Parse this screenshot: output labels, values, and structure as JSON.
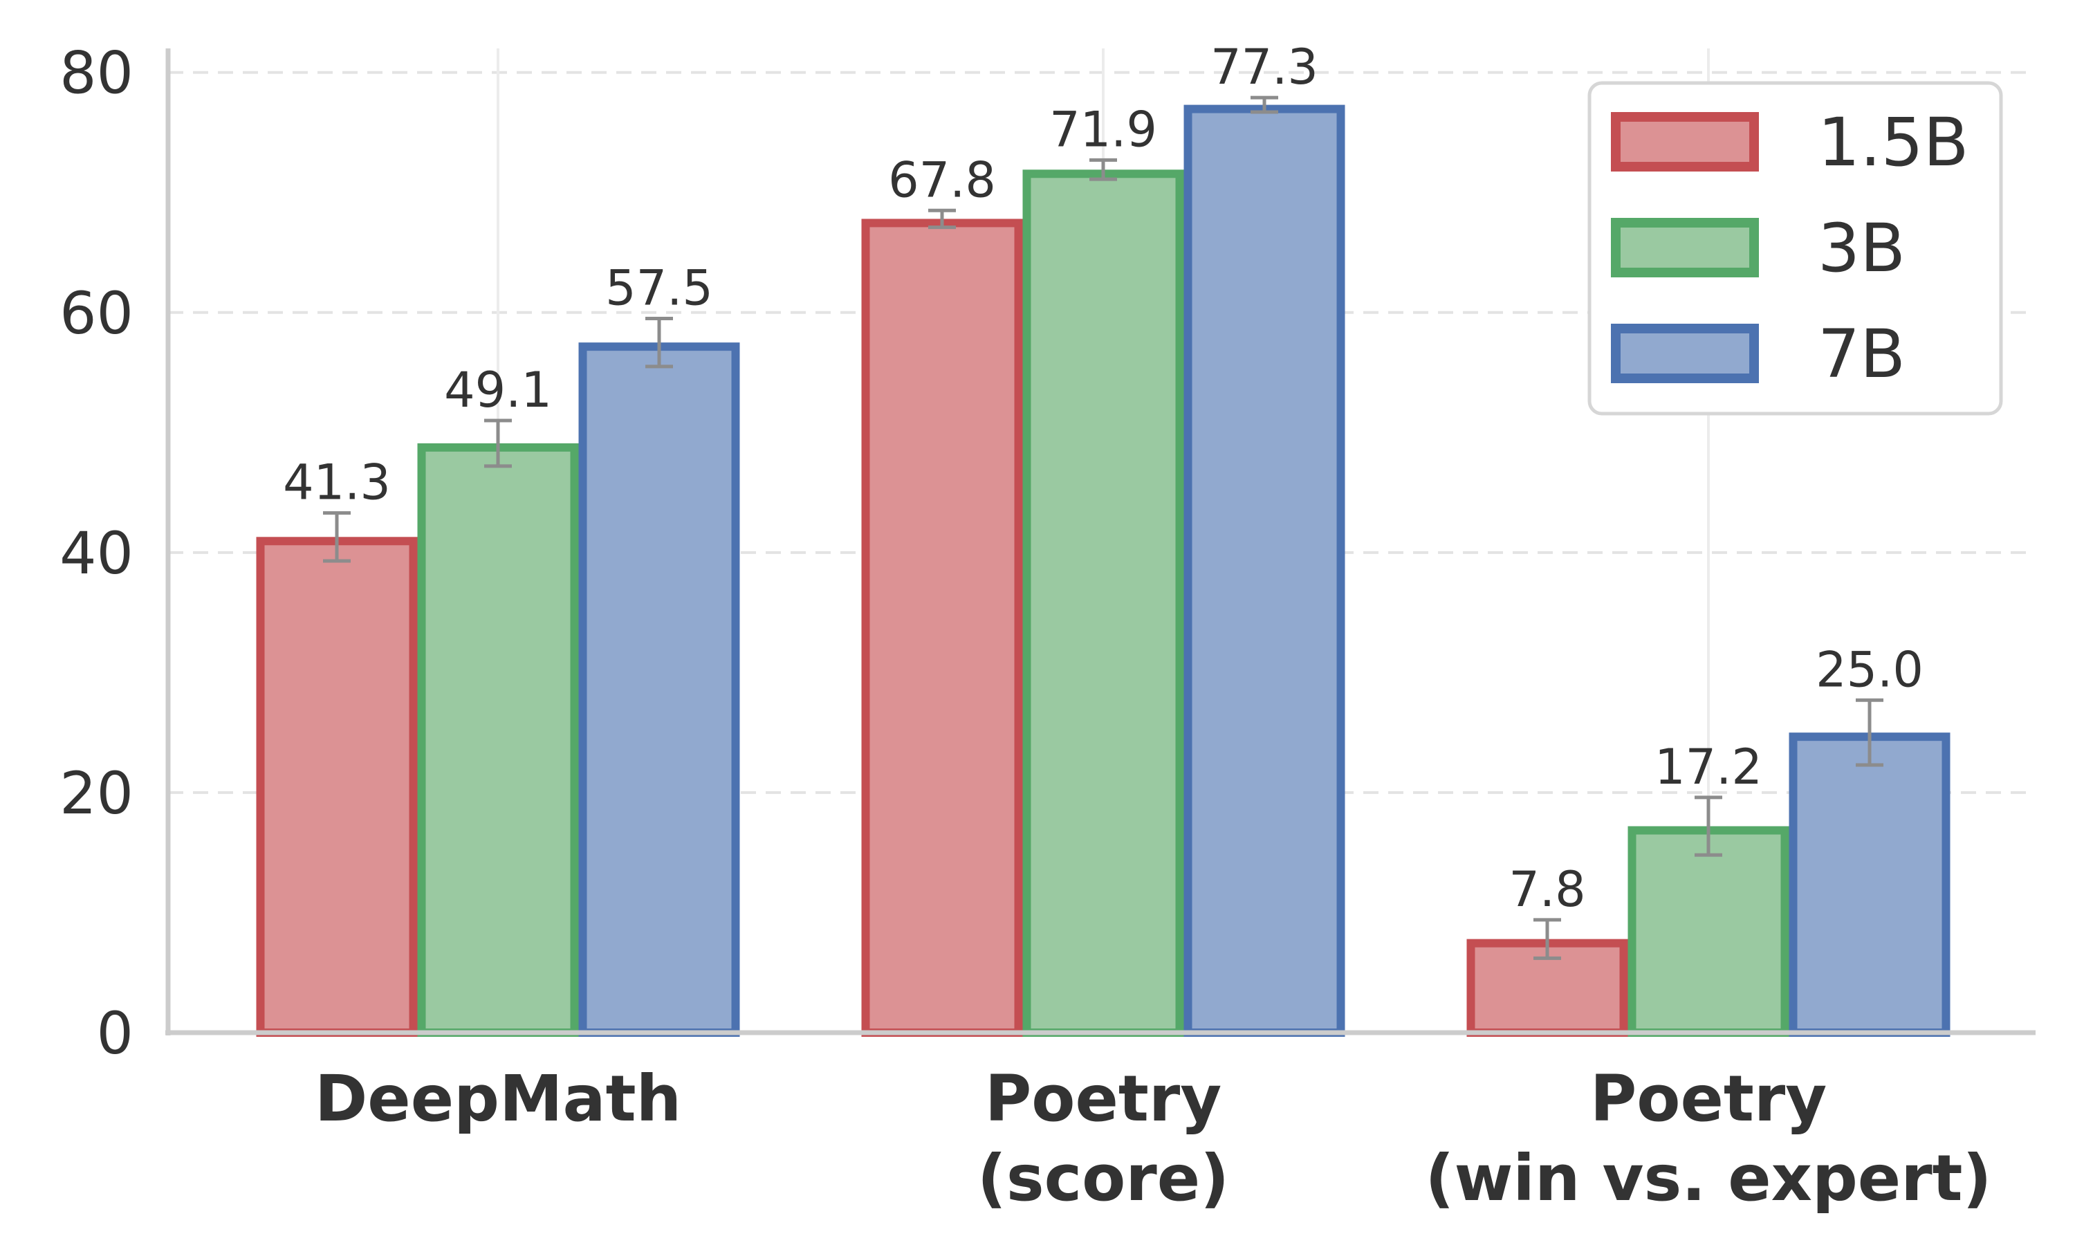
{
  "chart_data": {
    "type": "bar",
    "title": "",
    "xlabel": "",
    "ylabel": "",
    "categories": [
      [
        "DeepMath"
      ],
      [
        "Poetry",
        "(score)"
      ],
      [
        "Poetry",
        "(win vs. expert)"
      ]
    ],
    "series": [
      {
        "name": "1.5B",
        "values": [
          41.3,
          67.8,
          7.8
        ],
        "errors": [
          2.0,
          0.7,
          1.6
        ],
        "fill": "#dc9294",
        "stroke": "#c44e52"
      },
      {
        "name": "3B",
        "values": [
          49.1,
          71.9,
          17.2
        ],
        "errors": [
          1.9,
          0.8,
          2.4
        ],
        "fill": "#9ac9a1",
        "stroke": "#55a868"
      },
      {
        "name": "7B",
        "values": [
          57.5,
          77.3,
          25.0
        ],
        "errors": [
          2.0,
          0.6,
          2.7
        ],
        "fill": "#91a9cf",
        "stroke": "#4c72b0"
      }
    ],
    "value_labels": [
      [
        "41.3",
        "67.8",
        "7.8"
      ],
      [
        "49.1",
        "71.9",
        "17.2"
      ],
      [
        "57.5",
        "77.3",
        "25.0"
      ]
    ],
    "yticks": [
      0,
      20,
      40,
      60,
      80
    ],
    "ytick_labels": [
      "0",
      "20",
      "40",
      "60",
      "80"
    ],
    "ylim": [
      0,
      82
    ],
    "grid": true,
    "legend_position": "top-right",
    "error_bar_color": "#8c8c8c"
  }
}
